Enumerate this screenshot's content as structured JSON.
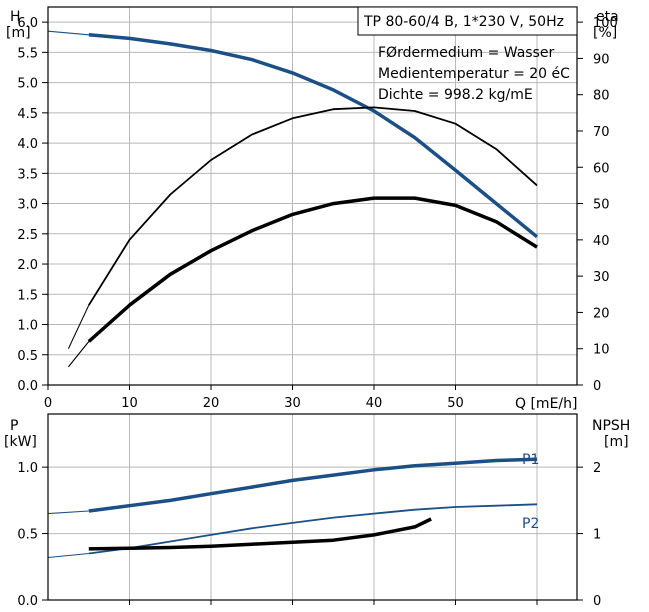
{
  "chart_data": [
    {
      "type": "line",
      "left_axis": {
        "label_symbol": "H",
        "label_unit": "[m]",
        "range": [
          0,
          6.0
        ],
        "ticks": [
          "0.0",
          "0.5",
          "1.0",
          "1.5",
          "2.0",
          "2.5",
          "3.0",
          "3.5",
          "4.0",
          "4.5",
          "5.0",
          "5.5",
          "6.0"
        ]
      },
      "right_axis": {
        "label_symbol": "eta",
        "label_unit": "[%]",
        "range": [
          0,
          100
        ],
        "ticks": [
          "0",
          "10",
          "20",
          "30",
          "40",
          "50",
          "60",
          "70",
          "80",
          "90",
          "100"
        ]
      },
      "x_axis": {
        "label": "Q [mE/h]",
        "range": [
          0,
          60
        ],
        "ticks": [
          "0",
          "10",
          "20",
          "30",
          "40",
          "50"
        ]
      },
      "info_box": {
        "title": "TP 80-60/4 B, 1*230 V, 50Hz",
        "lines": [
          "FØrdermedium = Wasser",
          "Medientemperatur = 20 éC",
          "Dichte = 998.2 kg/mE"
        ]
      },
      "grid": true,
      "series": [
        {
          "axis": "left",
          "color": "#1c4f86",
          "points": [
            [
              0,
              5.85
            ],
            [
              5,
              5.79
            ],
            [
              10,
              5.73
            ],
            [
              15,
              5.64
            ],
            [
              20,
              5.53
            ],
            [
              25,
              5.38
            ],
            [
              30,
              5.16
            ],
            [
              35,
              4.88
            ],
            [
              40,
              4.53
            ],
            [
              45,
              4.09
            ],
            [
              50,
              3.55
            ],
            [
              55,
              3.0
            ],
            [
              60,
              2.45
            ]
          ]
        },
        {
          "axis": "right",
          "color": "#000000",
          "points": [
            [
              2.5,
              10
            ],
            [
              5,
              22
            ],
            [
              10,
              40
            ],
            [
              15,
              52.5
            ],
            [
              20,
              62
            ],
            [
              25,
              69
            ],
            [
              30,
              73.5
            ],
            [
              35,
              76
            ],
            [
              40,
              76.5
            ],
            [
              45,
              75.5
            ],
            [
              50,
              72
            ],
            [
              55,
              65
            ],
            [
              60,
              55
            ]
          ]
        },
        {
          "axis": "right",
          "color": "#000000",
          "points": [
            [
              2.5,
              5
            ],
            [
              5,
              12
            ],
            [
              10,
              22
            ],
            [
              15,
              30.5
            ],
            [
              20,
              37
            ],
            [
              25,
              42.5
            ],
            [
              30,
              47
            ],
            [
              35,
              50
            ],
            [
              40,
              51.5
            ],
            [
              45,
              51.5
            ],
            [
              50,
              49.5
            ],
            [
              55,
              45
            ],
            [
              60,
              38
            ]
          ]
        }
      ]
    },
    {
      "type": "line",
      "left_axis": {
        "label_symbol": "P",
        "label_unit": "[kW]",
        "range": [
          0,
          1.4
        ],
        "ticks": [
          "0.0",
          "0.5",
          "1.0"
        ]
      },
      "right_axis": {
        "label_symbol": "NPSH",
        "label_unit": "[m]",
        "range": [
          0,
          2.8
        ],
        "ticks": [
          "0",
          "1",
          "2"
        ]
      },
      "x_axis": {
        "range": [
          0,
          60
        ]
      },
      "grid": true,
      "series": [
        {
          "name": "P1",
          "axis": "left",
          "color": "#1c4f86",
          "points": [
            [
              0,
              0.65
            ],
            [
              5,
              0.67
            ],
            [
              10,
              0.71
            ],
            [
              15,
              0.75
            ],
            [
              20,
              0.8
            ],
            [
              25,
              0.85
            ],
            [
              30,
              0.9
            ],
            [
              35,
              0.94
            ],
            [
              40,
              0.98
            ],
            [
              45,
              1.01
            ],
            [
              50,
              1.03
            ],
            [
              55,
              1.05
            ],
            [
              60,
              1.06
            ]
          ]
        },
        {
          "name": "P2",
          "axis": "left",
          "color": "#1c4f86",
          "points": [
            [
              0,
              0.32
            ],
            [
              5,
              0.35
            ],
            [
              10,
              0.39
            ],
            [
              15,
              0.44
            ],
            [
              20,
              0.49
            ],
            [
              25,
              0.54
            ],
            [
              30,
              0.58
            ],
            [
              35,
              0.62
            ],
            [
              40,
              0.65
            ],
            [
              45,
              0.68
            ],
            [
              50,
              0.7
            ],
            [
              55,
              0.71
            ],
            [
              60,
              0.72
            ]
          ]
        },
        {
          "axis": "right",
          "color": "#000000",
          "points": [
            [
              5,
              0.77
            ],
            [
              10,
              0.78
            ],
            [
              15,
              0.79
            ],
            [
              20,
              0.81
            ],
            [
              25,
              0.84
            ],
            [
              30,
              0.87
            ],
            [
              35,
              0.9
            ],
            [
              40,
              0.98
            ],
            [
              45,
              1.1
            ],
            [
              47,
              1.22
            ]
          ]
        }
      ]
    }
  ]
}
